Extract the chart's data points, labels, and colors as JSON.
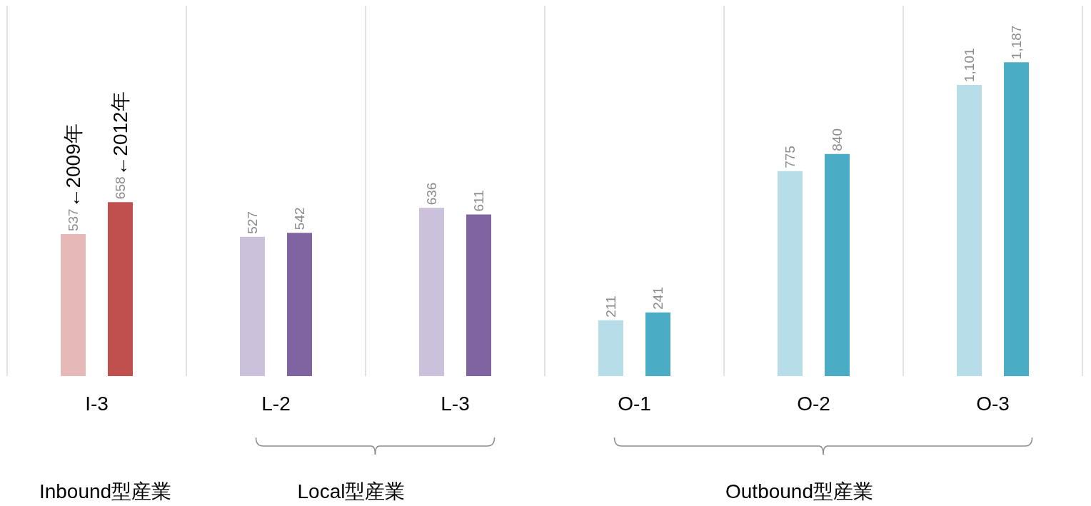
{
  "chart_data": {
    "type": "bar",
    "categories": [
      "I-3",
      "L-2",
      "L-3",
      "O-1",
      "O-2",
      "O-3"
    ],
    "series": [
      {
        "name": "←2009年",
        "colors": [
          "#e6b9b8",
          "#ccc1da",
          "#ccc1da",
          "#b7dee8",
          "#b7dee8",
          "#b7dee8"
        ],
        "values": [
          537,
          527,
          636,
          211,
          775,
          1101
        ],
        "value_labels": [
          "537",
          "527",
          "636",
          "211",
          "775",
          "1,101"
        ]
      },
      {
        "name": "←2012年",
        "colors": [
          "#c0504d",
          "#8064a2",
          "#8064a2",
          "#4bacc6",
          "#4bacc6",
          "#4bacc6"
        ],
        "values": [
          658,
          542,
          611,
          241,
          840,
          1187
        ],
        "value_labels": [
          "658",
          "542",
          "611",
          "241",
          "840",
          "1,187"
        ]
      }
    ],
    "grid": "x",
    "annotations": [
      "Inbound型産業",
      "Local型産業",
      "Outbound型産業"
    ]
  }
}
